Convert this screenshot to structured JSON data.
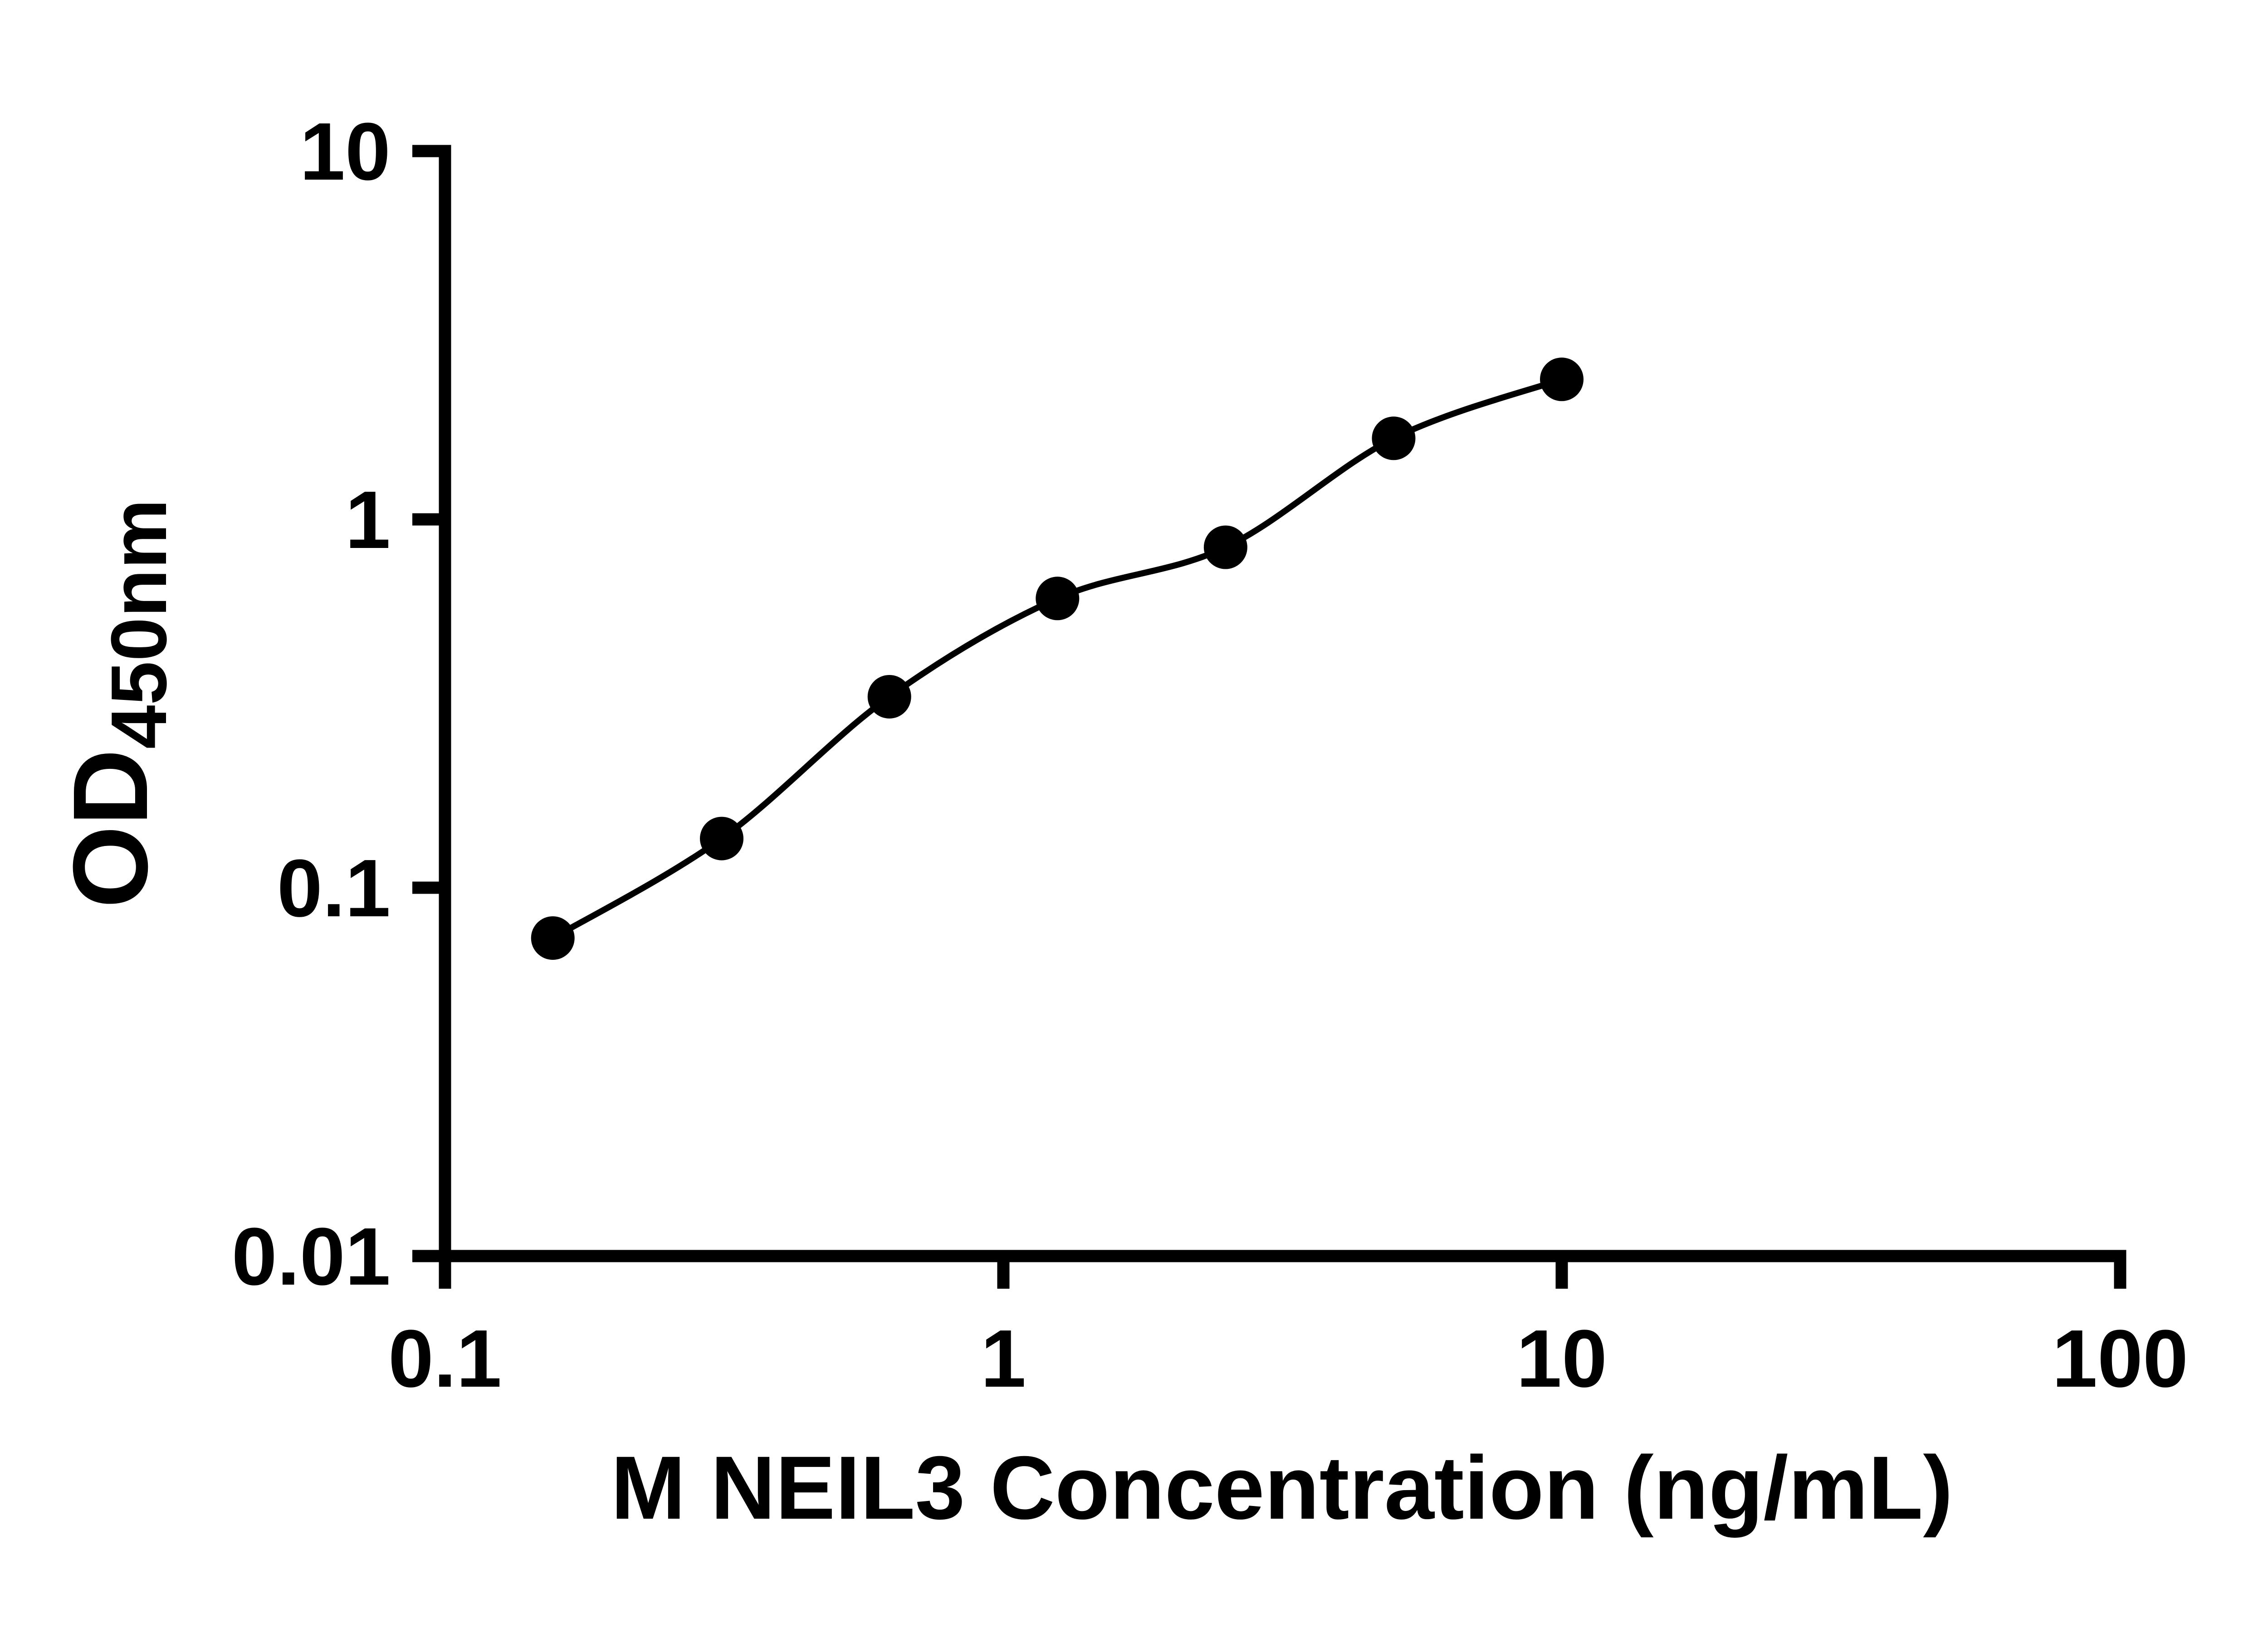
{
  "chart_data": {
    "type": "scatter",
    "subtype": "standard-curve-with-fit-line",
    "title": "",
    "xlabel": "M NEIL3 Concentration (ng/mL)",
    "ylabel_main": "OD",
    "ylabel_sub": "450nm",
    "x": [
      0.156,
      0.313,
      0.625,
      1.25,
      2.5,
      5,
      10
    ],
    "y": [
      0.073,
      0.136,
      0.33,
      0.61,
      0.84,
      1.66,
      2.4
    ],
    "x_scale": "log",
    "y_scale": "log",
    "xlim": [
      0.1,
      100
    ],
    "ylim": [
      0.01,
      10
    ],
    "x_ticks": [
      0.1,
      1,
      10,
      100
    ],
    "x_tick_labels": [
      "0.1",
      "1",
      "10",
      "100"
    ],
    "y_ticks": [
      0.01,
      0.1,
      1,
      10
    ],
    "y_tick_labels": [
      "0.01",
      "0.1",
      "1",
      "10"
    ],
    "grid": "off",
    "legend": "none",
    "marker_color": "#000000",
    "line_color": "#000000",
    "axis_color": "#000000",
    "background_color": "#ffffff"
  }
}
